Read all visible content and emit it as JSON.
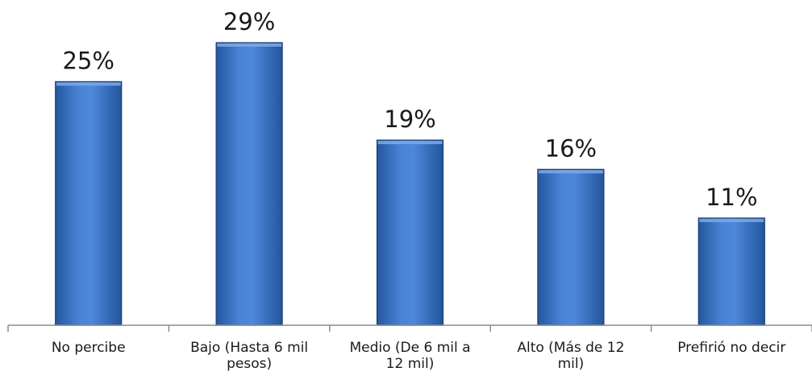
{
  "chart_data": {
    "type": "bar",
    "categories": [
      [
        "No percibe"
      ],
      [
        "Bajo (Hasta 6 mil",
        "pesos)"
      ],
      [
        "Medio (De 6 mil a",
        "12 mil)"
      ],
      [
        "Alto (Más de 12",
        "mil)"
      ],
      [
        "Prefirió no decir"
      ]
    ],
    "values": [
      25,
      29,
      19,
      16,
      11
    ],
    "data_labels": [
      "25%",
      "29%",
      "19%",
      "16%",
      "11%"
    ],
    "ylim": [
      0,
      30
    ],
    "grid": false,
    "legend": "none",
    "colors": {
      "bar_light": "#6e9de0",
      "bar_mid": "#3f78cf",
      "bar_dark": "#22559f",
      "bar_edge": "#1b3f78",
      "axis": "#8c8c8c"
    }
  }
}
